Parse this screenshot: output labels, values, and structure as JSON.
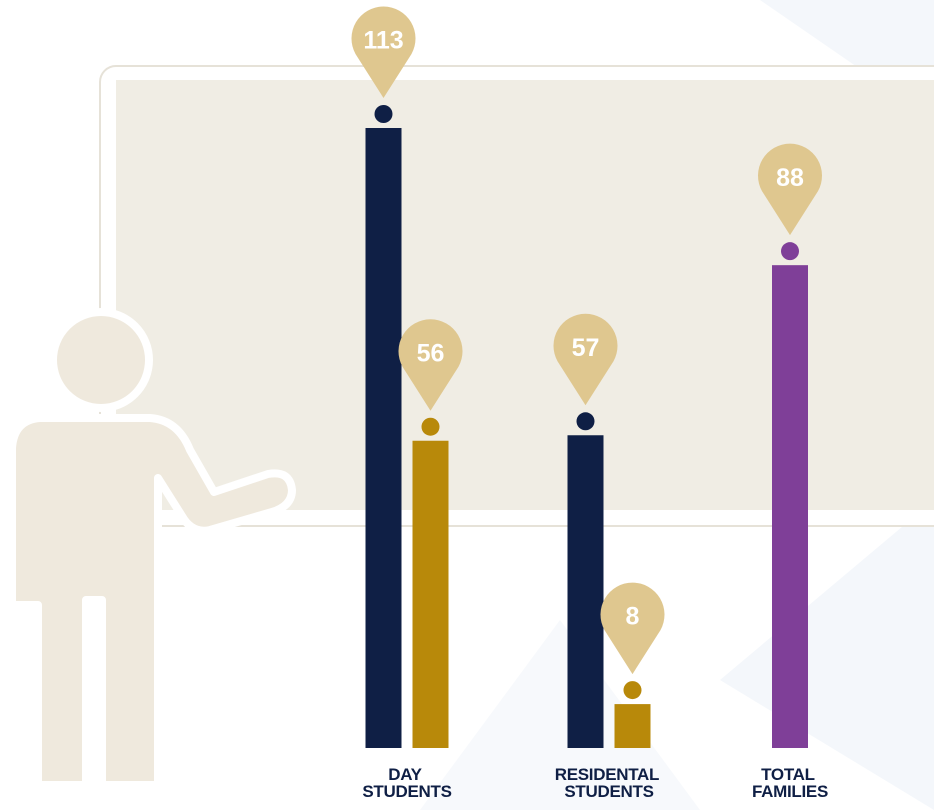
{
  "chart_data": {
    "type": "bar",
    "categories": [
      "DAY STUDENTS",
      "RESIDENTAL STUDENTS",
      "TOTAL FAMILIES"
    ],
    "series": [
      {
        "color": "#0f1f45",
        "values": [
          113,
          57,
          null
        ]
      },
      {
        "color": "#b8890a",
        "values": [
          56,
          8,
          null
        ]
      },
      {
        "color": "#7f3f98",
        "values": [
          null,
          null,
          88
        ]
      }
    ],
    "pin_color": "#dfc78f"
  }
}
